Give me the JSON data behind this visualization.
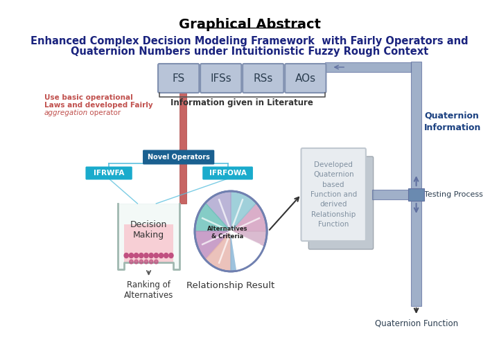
{
  "title": "Graphical Abstract",
  "subtitle_line1": "Enhanced Complex Decision Modeling Framework  with Fairly Operators and",
  "subtitle_line2": "Quaternion Numbers under Intuitionistic Fuzzy Rough Context",
  "fs_boxes": [
    "FS",
    "IFSs",
    "RSs",
    "AOs"
  ],
  "lit_label": "Information given in Literature",
  "left_text_line1": "Use basic operational",
  "left_text_line2": "Laws and developed Fairly",
  "left_text_italic": "aggregation",
  "left_text_end": " operator",
  "novel_label": "Novel Operators",
  "ifrwfa_label": "IFRWFA",
  "ifrfowa_label": "IFRFOWA",
  "decision_label": "Decision\nMaking",
  "ranking_label": "Ranking of\nAlternatives",
  "relationship_label": "Relationship Result",
  "alternatives_label": "Alternatives\n& Criteria",
  "quaternion_box_text": "Developed\nQuaternion\nbased\nFunction and\nderived\nRelationship\nFunction",
  "quaternion_info_label": "Quaternion\nInformation",
  "testing_label": "Testing Process",
  "quaternion_func_label": "Quaternion Function",
  "bg_color": "#ffffff",
  "title_color": "#000000",
  "subtitle_color": "#1a237e",
  "fs_box_color": "#b8c4d8",
  "fs_box_edge": "#8090b0",
  "fs_text_color": "#2c3e50",
  "lit_text_color": "#333333",
  "pipe_red": "#c0504d",
  "pipe_blue": "#8096b8",
  "pipe_blue_dark": "#6070a0",
  "novel_bg": "#1a6090",
  "novel_text": "#ffffff",
  "ifrwfa_bg": "#1aabcc",
  "ifrfowa_bg": "#1aabcc",
  "beaker_border": "#a0b8b0",
  "beaker_liquid": "#f8c8d0",
  "beaker_bg": "#e8f4f0",
  "beads_color": "#c05080",
  "left_text_color": "#c0504d",
  "quat_box_text_color": "#8090a0",
  "quat_info_color": "#1a4080",
  "testing_color": "#2c3e50",
  "quat_func_color": "#2c3e50",
  "connector_color": "#5bc0de"
}
